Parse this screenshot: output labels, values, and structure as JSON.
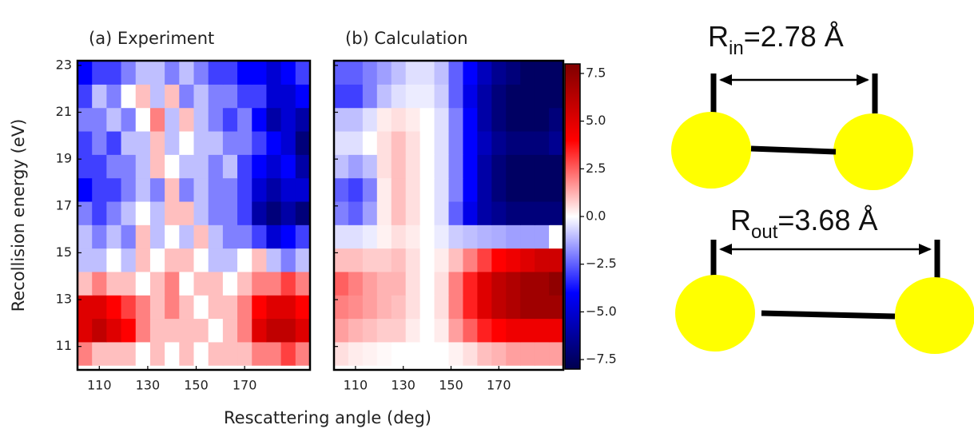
{
  "chart_data": [
    {
      "type": "heatmap",
      "title": "(a) Experiment",
      "xlabel": "Rescattering angle (deg)",
      "ylabel": "Recollision energy (eV)",
      "colormap": "seismic",
      "clim": [
        -8,
        8
      ],
      "xlim": [
        101,
        197
      ],
      "ylim": [
        10,
        23.2
      ],
      "xticks": [
        110,
        130,
        150,
        170
      ],
      "yticks": [
        11,
        13,
        15,
        17,
        19,
        21,
        23
      ],
      "xbins": [
        101,
        107,
        113,
        119,
        125,
        131,
        137,
        143,
        149,
        155,
        161,
        167,
        173,
        179,
        185,
        191,
        197
      ],
      "ybins": [
        10.2,
        11.2,
        12.2,
        13.2,
        14.2,
        15.2,
        16.2,
        17.2,
        18.2,
        19.2,
        20.2,
        21.2,
        22.2,
        23.2
      ],
      "values": [
        [
          2,
          1,
          1,
          1,
          0,
          1,
          0,
          1,
          0,
          1,
          1,
          1,
          2,
          2,
          3,
          2
        ],
        [
          5,
          6,
          5,
          4,
          2,
          1,
          1,
          1,
          1,
          0,
          1,
          2,
          5,
          6,
          6,
          5
        ],
        [
          5,
          5,
          4,
          3,
          2,
          1,
          2,
          1,
          0,
          1,
          1,
          2,
          4,
          5,
          5,
          4
        ],
        [
          1,
          2,
          1,
          1,
          0,
          1,
          2,
          0,
          1,
          1,
          0,
          1,
          2,
          2,
          3,
          2
        ],
        [
          -1,
          -1,
          0,
          -1,
          1,
          0,
          1,
          1,
          0,
          -1,
          -1,
          0,
          1,
          -1,
          -2,
          -1
        ],
        [
          -1,
          -2,
          -1,
          -2,
          1,
          -1,
          0,
          -1,
          1,
          -1,
          -2,
          -2,
          -3,
          -5,
          -4,
          -3
        ],
        [
          -2,
          -3,
          -2,
          -1,
          0,
          -1,
          1,
          1,
          -1,
          -2,
          -2,
          -3,
          -6,
          -7,
          -6,
          -7
        ],
        [
          -4,
          -3,
          -3,
          -2,
          -1,
          -2,
          1,
          -2,
          -1,
          -2,
          -2,
          -3,
          -5,
          -6,
          -5,
          -5
        ],
        [
          -3,
          -3,
          -2,
          -2,
          -1,
          1,
          0,
          -1,
          -1,
          -2,
          -1,
          -3,
          -4,
          -5,
          -4,
          -6
        ],
        [
          -3,
          -2,
          -3,
          -1,
          -1,
          1,
          -1,
          0,
          -1,
          -1,
          -2,
          -2,
          -3,
          -4,
          -5,
          -7
        ],
        [
          -2,
          -2,
          -1,
          -2,
          0,
          2,
          -1,
          1,
          -1,
          -2,
          -3,
          -2,
          -4,
          -6,
          -5,
          -6
        ],
        [
          -3,
          -1,
          -2,
          0,
          1,
          -1,
          1,
          -2,
          -1,
          -2,
          -2,
          -3,
          -3,
          -5,
          -5,
          -4
        ],
        [
          -4,
          -3,
          -3,
          -2,
          -1,
          -1,
          -2,
          -1,
          -2,
          -3,
          -3,
          -4,
          -4,
          -5,
          -4,
          -3
        ]
      ]
    },
    {
      "type": "heatmap",
      "title": "(b) Calculation",
      "colormap": "seismic",
      "clim": [
        -8,
        8
      ],
      "xlim": [
        101,
        197
      ],
      "ylim": [
        10,
        23.2
      ],
      "xticks": [
        110,
        130,
        150,
        170
      ],
      "xbins": [
        101,
        107,
        113,
        119,
        125,
        131,
        137,
        143,
        149,
        155,
        161,
        167,
        173,
        179,
        185,
        191,
        197
      ],
      "ybins": [
        10.2,
        11.2,
        12.2,
        13.2,
        14.2,
        15.2,
        16.2,
        17.2,
        18.2,
        19.2,
        20.2,
        21.2,
        22.2,
        23.2
      ],
      "values": [
        [
          0.5,
          0.3,
          0.2,
          0.1,
          0,
          0,
          0,
          0,
          0.2,
          0.5,
          1,
          1.2,
          1.5,
          1.5,
          1.5,
          1.5
        ],
        [
          1.5,
          1.2,
          1,
          0.8,
          0.8,
          0.3,
          0,
          0.3,
          1.5,
          2.5,
          3.5,
          4,
          4.5,
          4.5,
          4.5,
          4.5
        ],
        [
          2,
          1.8,
          1.5,
          1.2,
          1,
          0.5,
          0,
          0.5,
          2,
          3.5,
          5,
          6,
          6.5,
          7,
          7,
          7
        ],
        [
          2.5,
          2,
          1.5,
          1.2,
          1.2,
          0.5,
          0,
          0.5,
          2,
          3.5,
          5,
          6,
          6.5,
          7,
          7,
          7.5
        ],
        [
          1,
          1,
          0.8,
          0.8,
          1,
          0.5,
          0,
          0.3,
          1,
          2,
          3,
          4,
          4.5,
          5,
          5.5,
          5.5
        ],
        [
          -0.5,
          -0.5,
          -0.3,
          0.2,
          0.5,
          0.3,
          0,
          -0.3,
          -0.8,
          -1,
          -1.2,
          -1.3,
          -1.5,
          -1.5,
          -1.5,
          0
        ],
        [
          -2,
          -2.5,
          -1.5,
          0.3,
          1,
          0.5,
          0,
          -0.5,
          -2.5,
          -4.5,
          -6,
          -6.5,
          -7,
          -7,
          -7,
          -7
        ],
        [
          -2.5,
          -3,
          -2,
          0.3,
          1,
          0.5,
          0,
          -0.5,
          -2,
          -4,
          -6,
          -7,
          -7.5,
          -7.5,
          -7.5,
          -7.5
        ],
        [
          -1,
          -1.5,
          -1,
          0.5,
          1,
          0.5,
          0,
          -0.5,
          -2,
          -4,
          -6,
          -7,
          -7.5,
          -7.5,
          -7.5,
          -7.5
        ],
        [
          -0.5,
          -0.5,
          0,
          0.5,
          1,
          0.5,
          0,
          -0.5,
          -2,
          -4,
          -5.5,
          -6.5,
          -7,
          -7,
          -7,
          -6.5
        ],
        [
          -1,
          -1,
          -0.5,
          0.3,
          0.5,
          0.3,
          0,
          -0.5,
          -2,
          -4,
          -6,
          -7,
          -7.5,
          -7.5,
          -7.5,
          -7
        ],
        [
          -3,
          -3,
          -2,
          -1,
          -0.5,
          -0.3,
          -0.3,
          -0.8,
          -2.5,
          -4.5,
          -6,
          -7,
          -7.5,
          -7.5,
          -7.5,
          -7.5
        ],
        [
          -2.5,
          -2.5,
          -2,
          -1.5,
          -1,
          -0.5,
          -0.5,
          -1,
          -2.5,
          -4,
          -5.5,
          -6.5,
          -7,
          -7.5,
          -7.5,
          -7.5
        ]
      ],
      "colorbar": {
        "ticks": [
          {
            "value": 7.5,
            "label": "7.5"
          },
          {
            "value": 5,
            "label": "5.0"
          },
          2.5,
          {
            "value": 0,
            "label": "0.0"
          },
          {
            "value": -2.5,
            "label": "−2.5"
          },
          {
            "value": -5,
            "label": "−5.0"
          },
          {
            "value": -7.5,
            "label": "−7.5"
          }
        ]
      }
    }
  ],
  "diagram": {
    "labels": [
      {
        "symbol": "R",
        "subscript": "in",
        "text": "=2.78 Å"
      },
      {
        "symbol": "R",
        "subscript": "out",
        "text": "=3.68 Å"
      }
    ]
  }
}
